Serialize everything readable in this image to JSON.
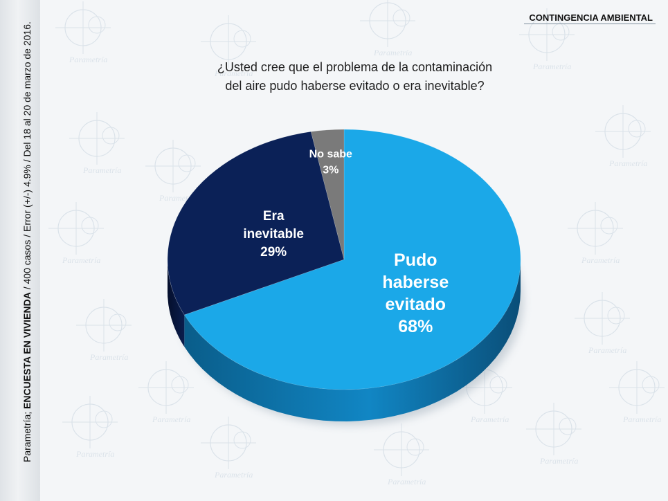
{
  "header": {
    "section_label": "CONTINGENCIA AMBIENTAL"
  },
  "question": {
    "line1": "¿Usted cree que el problema de la contaminación",
    "line2": "del aire pudo haberse evitado o era inevitable?"
  },
  "source": {
    "prefix": "Parametría; ",
    "survey": "ENCUESTA EN VIVIENDA",
    "details": " /  400 casos / Error (+/-) 4.9% / Del 18 al 20 de marzo de 2016."
  },
  "watermark_text": "Parametría",
  "colors": {
    "pudo": "#1ba8e8",
    "era": "#0b2157",
    "nosabe": "#7a7a7a",
    "label_text": "#ffffff"
  },
  "chart_data": {
    "type": "pie",
    "title": "¿Usted cree que el problema de la contaminación del aire pudo haberse evitado o era inevitable?",
    "unit": "%",
    "slices": [
      {
        "label_lines": [
          "Pudo",
          "haberse",
          "evitado"
        ],
        "value": 68,
        "value_text": "68%"
      },
      {
        "label_lines": [
          "Era",
          "inevitable"
        ],
        "value": 29,
        "value_text": "29%"
      },
      {
        "label_lines": [
          "No sabe"
        ],
        "value": 3,
        "value_text": "3%"
      }
    ]
  }
}
